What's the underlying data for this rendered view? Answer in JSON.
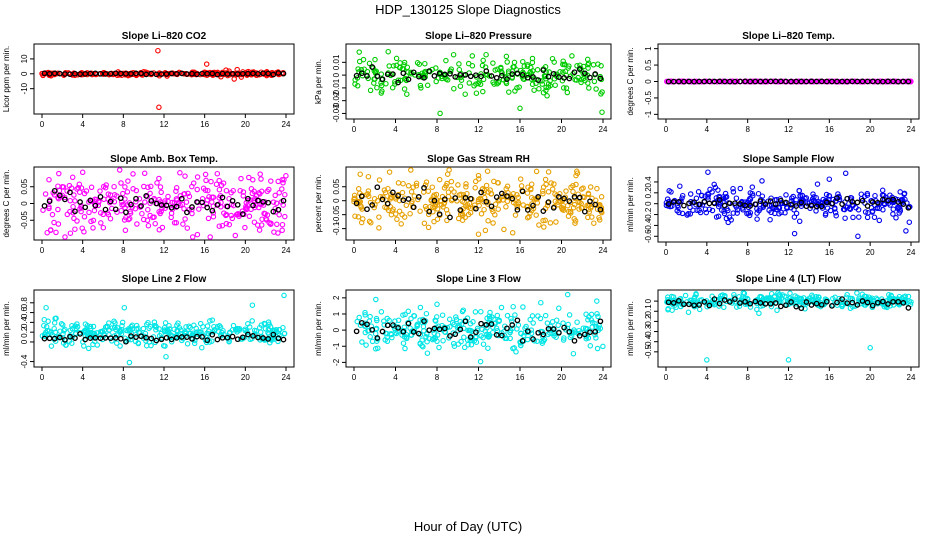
{
  "figure": {
    "title": "HDP_130125  Slope Diagnostics",
    "xlabel": "Hour of Day (UTC)"
  },
  "chart_data": [
    {
      "type": "scatter",
      "title": "Slope Li–820 CO2",
      "ylabel": "Licor ppm per min.",
      "xlim": [
        0,
        24
      ],
      "ylim": [
        -25,
        18
      ],
      "xticks": [
        "0",
        "4",
        "8",
        "12",
        "16",
        "20",
        "24"
      ],
      "yticks": [
        -10,
        0,
        10
      ],
      "point_color": "#ff0000",
      "summary_color": "#000000",
      "scatter": {
        "x": [
          0.3,
          11.4,
          11.5,
          16.2,
          17.6,
          18.1,
          18.4,
          18.9,
          19.2,
          19.6,
          20.3,
          21.1,
          12.3,
          14.8
        ],
        "y": [
          0.5,
          15.5,
          -22.5,
          6.5,
          -2.0,
          2.5,
          1.8,
          -3.5,
          2.8,
          -2.2,
          1.5,
          -1.0,
          -1.5,
          1.0
        ],
        "spread": 0.5,
        "dense_n": 240
      },
      "summary": {
        "level": 0.0,
        "spread": 0.2
      }
    },
    {
      "type": "scatter",
      "title": "Slope Li–820 Pressure",
      "ylabel": "kPa per min.",
      "xlim": [
        0,
        24
      ],
      "ylim": [
        -0.032,
        0.022
      ],
      "xticks": [
        "0",
        "4",
        "8",
        "12",
        "16",
        "20",
        "24"
      ],
      "yticks": [
        -0.03,
        -0.02,
        -0.01,
        0.0,
        0.01
      ],
      "point_color": "#00cc00",
      "summary_color": "#000000",
      "scatter": {
        "x": [
          0.5,
          7.1,
          8.3,
          11.4,
          15.7,
          16.0,
          17.2,
          18.5,
          21.0,
          23.9,
          9.6,
          13.5
        ],
        "y": [
          0.018,
          -0.008,
          -0.03,
          0.015,
          -0.01,
          -0.026,
          0.013,
          -0.012,
          0.015,
          -0.029,
          0.016,
          -0.007
        ],
        "spread": 0.0065,
        "dense_n": 260
      },
      "summary": {
        "level": 0.0,
        "spread": 0.0025
      }
    },
    {
      "type": "scatter",
      "title": "Slope Li–820 Temp.",
      "ylabel": "degrees C per min.",
      "xlim": [
        0,
        24
      ],
      "ylim": [
        -1.05,
        1.05
      ],
      "xticks": [
        "0",
        "4",
        "8",
        "12",
        "16",
        "20",
        "24"
      ],
      "yticks": [
        -1.0,
        -0.5,
        0.0,
        0.5,
        1.0
      ],
      "point_color": "#ff00ff",
      "summary_color": "#000000",
      "scatter": {
        "x": [],
        "y": [],
        "spread": 0.003,
        "dense_n": 240
      },
      "summary": {
        "level": 0.0,
        "spread": 0.002
      }
    },
    {
      "type": "scatter",
      "title": "Slope Amb. Box Temp.",
      "ylabel": "degrees C per min.",
      "xlim": [
        0,
        24
      ],
      "ylim": [
        -0.1,
        0.1
      ],
      "xticks": [
        "0",
        "4",
        "8",
        "12",
        "16",
        "20",
        "24"
      ],
      "yticks": [
        -0.05,
        0.0,
        0.05
      ],
      "point_color": "#ff00ff",
      "summary_color": "#000000",
      "scatter": {
        "x": [
          4.0,
          8.2,
          10.1,
          23.2
        ],
        "y": [
          0.093,
          -0.08,
          0.09,
          -0.088
        ],
        "spread": 0.045,
        "dense_n": 330
      },
      "summary": {
        "level": 0.0,
        "spread": 0.018
      }
    },
    {
      "type": "scatter",
      "title": "Slope Gas Stream RH",
      "ylabel": "percent per min.",
      "xlim": [
        0,
        24
      ],
      "ylim": [
        -0.13,
        0.11
      ],
      "xticks": [
        "0",
        "4",
        "8",
        "12",
        "16",
        "20",
        "24"
      ],
      "yticks": [
        -0.1,
        -0.05,
        0.0,
        0.05
      ],
      "point_color": "#e6a000",
      "summary_color": "#000000",
      "scatter": {
        "x": [
          0.6,
          12.0,
          17.6,
          15.3,
          21.4
        ],
        "y": [
          0.095,
          -0.12,
          0.105,
          -0.115,
          0.09
        ],
        "spread": 0.045,
        "dense_n": 340
      },
      "summary": {
        "level": 0.0,
        "spread": 0.025
      }
    },
    {
      "type": "scatter",
      "title": "Slope Sample Flow",
      "ylabel": "ml/min per min.",
      "xlim": [
        0,
        24
      ],
      "ylim": [
        -0.65,
        0.62
      ],
      "xticks": [
        "0",
        "4",
        "8",
        "12",
        "16",
        "20",
        "24"
      ],
      "yticks": [
        -0.6,
        -0.4,
        -0.2,
        0.0,
        0.2,
        0.4
      ],
      "point_color": "#0000ee",
      "summary_color": "#000000",
      "scatter": {
        "x": [
          4.1,
          12.6,
          17.6,
          18.8,
          16.0,
          23.5,
          9.4
        ],
        "y": [
          0.58,
          -0.55,
          0.56,
          -0.6,
          0.45,
          -0.5,
          0.42
        ],
        "spread": 0.13,
        "dense_n": 320
      },
      "summary": {
        "level": 0.0,
        "spread": 0.05
      }
    },
    {
      "type": "scatter",
      "title": "Slope Line 2 Flow",
      "ylabel": "ml/min per min.",
      "xlim": [
        0,
        24
      ],
      "ylim": [
        -0.45,
        1.0
      ],
      "xticks": [
        "0",
        "4",
        "8",
        "12",
        "16",
        "20",
        "24"
      ],
      "yticks": [
        -0.4,
        0.0,
        0.2,
        0.4,
        0.6,
        0.8
      ],
      "point_color": "#00e5e5",
      "summary_color": "#000000",
      "scatter": {
        "x": [
          8.1,
          8.6,
          23.8,
          20.7,
          0.4,
          12.2
        ],
        "y": [
          0.7,
          -0.42,
          0.95,
          0.75,
          0.7,
          -0.3
        ],
        "spread": 0.12,
        "dense_n": 320,
        "offset": 0.2
      },
      "summary": {
        "level": 0.08,
        "spread": 0.03
      }
    },
    {
      "type": "scatter",
      "title": "Slope Line 3 Flow",
      "ylabel": "ml/min per min.",
      "xlim": [
        0,
        24
      ],
      "ylim": [
        -2.1,
        2.3
      ],
      "xticks": [
        "0",
        "4",
        "8",
        "12",
        "16",
        "20",
        "24"
      ],
      "yticks": [
        -2,
        -1,
        0,
        1,
        2
      ],
      "point_color": "#00e5e5",
      "summary_color": "#000000",
      "scatter": {
        "x": [
          2.1,
          6.4,
          12.2,
          18.0,
          20.6,
          8.0,
          23.4
        ],
        "y": [
          1.9,
          1.4,
          -1.95,
          1.7,
          2.2,
          1.6,
          1.8
        ],
        "spread": 0.6,
        "dense_n": 320
      },
      "summary": {
        "level": 0.0,
        "spread": 0.35
      }
    },
    {
      "type": "scatter",
      "title": "Slope Line 4 (LT) Flow",
      "ylabel": "ml/min per min.",
      "xlim": [
        0,
        24
      ],
      "ylim": [
        -0.62,
        0.08
      ],
      "xticks": [
        "0",
        "4",
        "8",
        "12",
        "16",
        "20",
        "24"
      ],
      "yticks": [
        -0.5,
        -0.4,
        -0.3,
        -0.2,
        -0.1,
        0.0
      ],
      "point_color": "#00e5e5",
      "summary_color": "#000000",
      "scatter": {
        "x": [
          4.0,
          12.0,
          20.0,
          0.6,
          2.2,
          9.1
        ],
        "y": [
          -0.58,
          -0.58,
          -0.46,
          -0.09,
          -0.11,
          -0.12
        ],
        "spread": 0.035,
        "dense_n": 320
      },
      "summary": {
        "level": -0.02,
        "spread": 0.02
      }
    }
  ]
}
